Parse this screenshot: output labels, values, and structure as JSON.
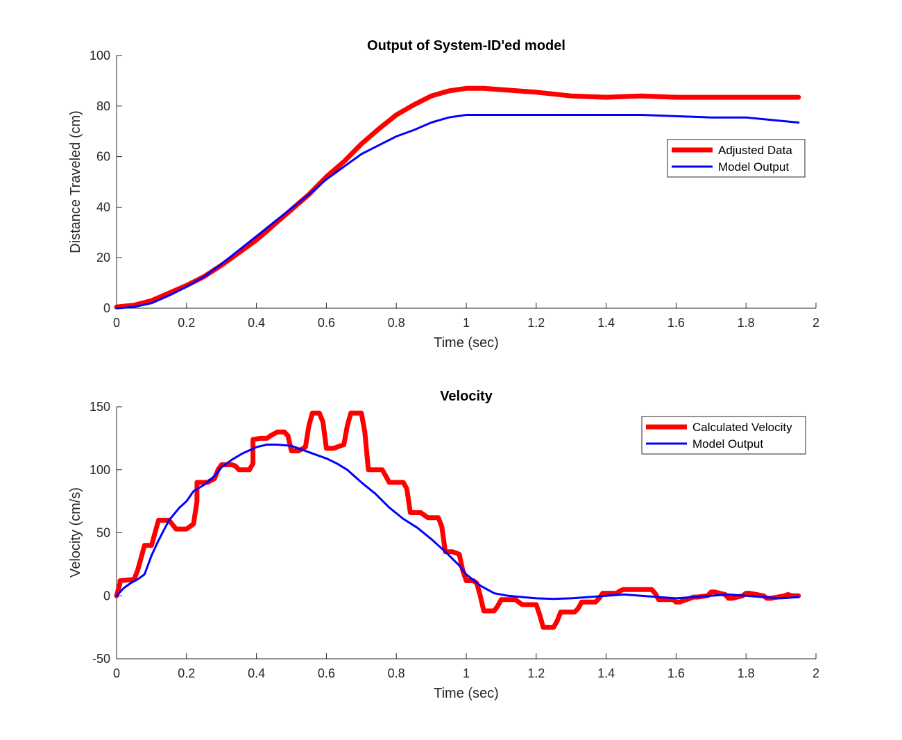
{
  "chart_data": [
    {
      "type": "line",
      "title": "Output of System-ID'ed model",
      "xlabel": "Time (sec)",
      "ylabel": "Distance Traveled (cm)",
      "xlim": [
        0,
        2
      ],
      "ylim": [
        0,
        100
      ],
      "xticks": [
        "0",
        "0.2",
        "0.4",
        "0.6",
        "0.8",
        "1",
        "1.2",
        "1.4",
        "1.6",
        "1.8",
        "2"
      ],
      "yticks": [
        "0",
        "20",
        "40",
        "60",
        "80",
        "100"
      ],
      "legend_position": "right",
      "series": [
        {
          "name": "Adjusted Data",
          "color": "#ff0000",
          "x": [
            0,
            0.05,
            0.1,
            0.15,
            0.2,
            0.25,
            0.3,
            0.35,
            0.4,
            0.45,
            0.5,
            0.55,
            0.6,
            0.65,
            0.7,
            0.75,
            0.8,
            0.85,
            0.9,
            0.95,
            1.0,
            1.05,
            1.1,
            1.2,
            1.3,
            1.4,
            1.5,
            1.6,
            1.7,
            1.8,
            1.95
          ],
          "y": [
            0.5,
            1.2,
            3,
            6,
            9,
            12.5,
            17,
            22,
            27,
            33,
            39,
            45,
            52,
            58,
            65,
            71,
            76.5,
            80.5,
            84,
            86,
            87,
            87,
            86.5,
            85.5,
            84,
            83.5,
            84,
            83.5,
            83.5,
            83.5,
            83.5
          ]
        },
        {
          "name": "Model Output",
          "color": "#0000ff",
          "x": [
            0,
            0.05,
            0.1,
            0.15,
            0.2,
            0.25,
            0.3,
            0.35,
            0.4,
            0.45,
            0.5,
            0.55,
            0.6,
            0.65,
            0.7,
            0.75,
            0.8,
            0.85,
            0.9,
            0.95,
            1.0,
            1.05,
            1.1,
            1.2,
            1.3,
            1.4,
            1.5,
            1.6,
            1.7,
            1.8,
            1.95
          ],
          "y": [
            0,
            0.5,
            2,
            5,
            8.5,
            12.5,
            17.5,
            23,
            28.5,
            34,
            39.5,
            45,
            51,
            56,
            61,
            64.5,
            68,
            70.5,
            73.5,
            75.5,
            76.5,
            76.5,
            76.5,
            76.5,
            76.5,
            76.5,
            76.5,
            76,
            75.5,
            75.5,
            73.5
          ]
        }
      ]
    },
    {
      "type": "line",
      "title": "Velocity",
      "xlabel": "Time (sec)",
      "ylabel": "Velocity (cm/s)",
      "xlim": [
        0,
        2
      ],
      "ylim": [
        -50,
        150
      ],
      "xticks": [
        "0",
        "0.2",
        "0.4",
        "0.6",
        "0.8",
        "1",
        "1.2",
        "1.4",
        "1.6",
        "1.8",
        "2"
      ],
      "yticks": [
        "-50",
        "0",
        "50",
        "100",
        "150"
      ],
      "legend_position": "top-right",
      "series": [
        {
          "name": "Calculated Velocity",
          "color": "#ff0000",
          "x": [
            0,
            0.01,
            0.01,
            0.05,
            0.06,
            0.07,
            0.08,
            0.1,
            0.11,
            0.12,
            0.15,
            0.17,
            0.2,
            0.22,
            0.23,
            0.23,
            0.26,
            0.28,
            0.29,
            0.3,
            0.33,
            0.34,
            0.35,
            0.38,
            0.39,
            0.39,
            0.41,
            0.43,
            0.44,
            0.46,
            0.48,
            0.49,
            0.5,
            0.52,
            0.54,
            0.55,
            0.56,
            0.58,
            0.59,
            0.6,
            0.62,
            0.65,
            0.66,
            0.67,
            0.7,
            0.71,
            0.72,
            0.76,
            0.77,
            0.78,
            0.82,
            0.83,
            0.84,
            0.87,
            0.88,
            0.89,
            0.92,
            0.93,
            0.94,
            0.96,
            0.98,
            0.99,
            1.0,
            1.02,
            1.03,
            1.04,
            1.05,
            1.08,
            1.09,
            1.1,
            1.14,
            1.15,
            1.16,
            1.2,
            1.21,
            1.22,
            1.25,
            1.26,
            1.27,
            1.31,
            1.32,
            1.33,
            1.37,
            1.38,
            1.39,
            1.43,
            1.44,
            1.45,
            1.53,
            1.54,
            1.55,
            1.59,
            1.6,
            1.61,
            1.64,
            1.65,
            1.66,
            1.69,
            1.7,
            1.71,
            1.74,
            1.75,
            1.76,
            1.79,
            1.8,
            1.81,
            1.85,
            1.86,
            1.87,
            1.91,
            1.92,
            1.93,
            1.95
          ],
          "y": [
            0,
            10,
            12,
            13,
            20,
            30,
            40,
            40,
            50,
            60,
            60,
            53,
            53,
            57,
            75,
            90,
            90,
            93,
            100,
            104,
            104,
            103,
            100,
            100,
            105,
            124,
            125,
            125,
            127,
            130,
            130,
            127,
            115,
            115,
            118,
            135,
            145,
            145,
            138,
            117,
            117,
            120,
            135,
            145,
            145,
            130,
            100,
            100,
            95,
            90,
            90,
            85,
            66,
            66,
            64,
            62,
            62,
            55,
            35,
            35,
            33,
            20,
            12,
            12,
            10,
            0,
            -12,
            -12,
            -8,
            -3,
            -3,
            -5,
            -7,
            -7,
            -15,
            -25,
            -25,
            -20,
            -13,
            -13,
            -10,
            -5,
            -5,
            -2,
            2,
            2,
            4,
            5,
            5,
            2,
            -3,
            -3,
            -5,
            -5,
            -2,
            -1,
            -1,
            0,
            3,
            3,
            1,
            -2,
            -2,
            0,
            2,
            2,
            0,
            -2,
            -2,
            0,
            1,
            0,
            0
          ]
        },
        {
          "name": "Model Output",
          "color": "#0000ff",
          "x": [
            0,
            0.02,
            0.04,
            0.06,
            0.08,
            0.1,
            0.12,
            0.15,
            0.18,
            0.2,
            0.22,
            0.25,
            0.28,
            0.3,
            0.33,
            0.36,
            0.4,
            0.43,
            0.46,
            0.5,
            0.53,
            0.56,
            0.6,
            0.63,
            0.66,
            0.7,
            0.74,
            0.78,
            0.82,
            0.86,
            0.9,
            0.94,
            0.98,
            1.0,
            1.04,
            1.08,
            1.12,
            1.16,
            1.2,
            1.25,
            1.3,
            1.35,
            1.4,
            1.45,
            1.5,
            1.55,
            1.6,
            1.65,
            1.7,
            1.75,
            1.8,
            1.85,
            1.9,
            1.95
          ],
          "y": [
            0,
            6,
            10,
            13,
            17,
            32,
            44,
            60,
            70,
            75,
            83,
            88,
            95,
            102,
            108,
            113,
            118,
            120,
            120,
            119,
            116,
            113,
            109,
            105,
            100,
            90,
            81,
            70,
            61,
            54,
            45,
            35,
            24,
            17,
            8,
            2,
            0,
            -1,
            -2,
            -2.5,
            -2,
            -1,
            0,
            1,
            0,
            -1,
            -2,
            -1,
            0,
            1,
            0,
            -1,
            -2,
            -1
          ]
        }
      ]
    }
  ]
}
